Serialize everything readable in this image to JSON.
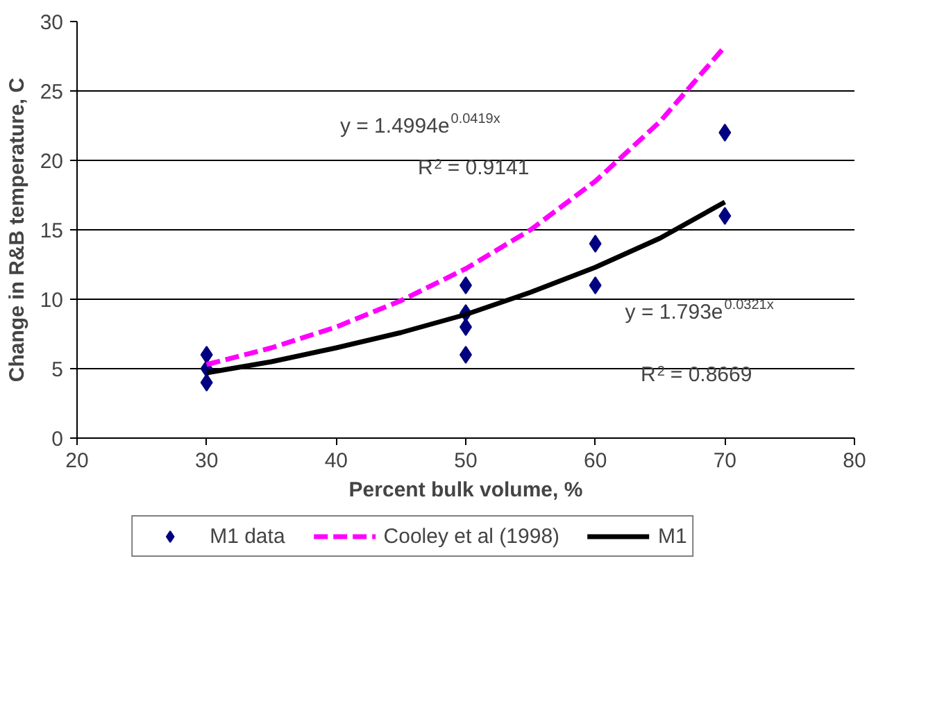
{
  "chart_data": {
    "type": "scatter",
    "xlabel": "Percent bulk volume, %",
    "ylabel": "Change in R&B temperature, C",
    "xlim": [
      20,
      80
    ],
    "xticks": [
      20,
      30,
      40,
      50,
      60,
      70,
      80
    ],
    "ylim": [
      0,
      30
    ],
    "yticks": [
      0,
      5,
      10,
      15,
      20,
      25,
      30
    ],
    "grid": "y",
    "legend": "bottom",
    "series": [
      {
        "name": "M1 data",
        "marker": "diamond",
        "color": "#000080",
        "x": [
          30,
          30,
          30,
          50,
          50,
          50,
          50,
          60,
          60,
          70,
          70
        ],
        "values": [
          4,
          5,
          6,
          6,
          8,
          9,
          11,
          11,
          14,
          16,
          22
        ]
      },
      {
        "name": "Cooley et al (1998)",
        "type": "line",
        "line_style": "dashed",
        "color": "#ff00ff",
        "x": [
          30,
          35,
          40,
          45,
          50,
          55,
          60,
          65,
          70
        ],
        "values": [
          5.3,
          6.5,
          8.0,
          9.9,
          12.2,
          15.0,
          18.5,
          22.8,
          28.2
        ]
      },
      {
        "name": "M1",
        "type": "line",
        "line_style": "solid",
        "color": "#000000",
        "x": [
          30,
          35,
          40,
          45,
          50,
          55,
          60,
          65,
          70
        ],
        "values": [
          4.7,
          5.5,
          6.5,
          7.6,
          8.9,
          10.5,
          12.3,
          14.4,
          17.0
        ]
      }
    ],
    "annotations": [
      "y = 1.4994e$^{0.0419x}$",
      "R$^{2}$ = 0.9141",
      "y = 1.793e$^{0.0321x}$",
      "R$^{2}$ = 0.8669"
    ]
  }
}
